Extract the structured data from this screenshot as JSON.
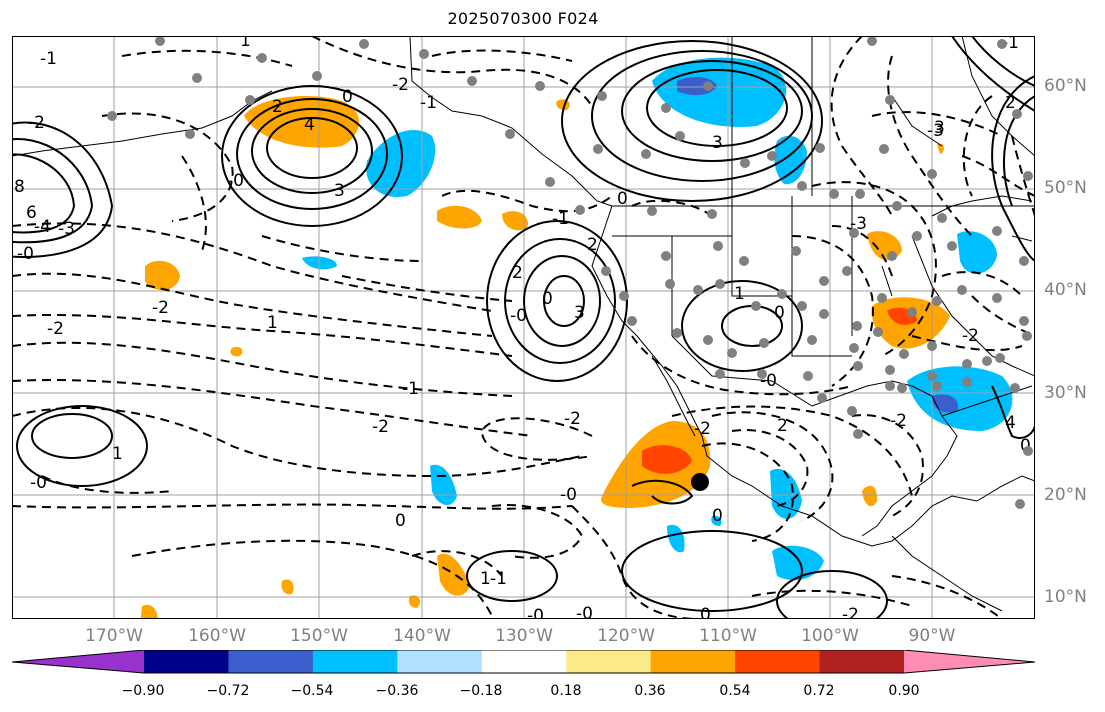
{
  "title": "2025070300 F024",
  "lat_labels": [
    "60°N",
    "50°N",
    "40°N",
    "30°N",
    "20°N",
    "10°N"
  ],
  "lon_labels": [
    "170°W",
    "160°W",
    "150°W",
    "140°W",
    "130°W",
    "120°W",
    "110°W",
    "100°W",
    "90°W"
  ],
  "colorbar": {
    "ticks": [
      "−0.90",
      "−0.72",
      "−0.54",
      "−0.36",
      "−0.18",
      "0.18",
      "0.36",
      "0.54",
      "0.72",
      "0.90"
    ],
    "colors": [
      "#9932cc",
      "#00008b",
      "#3a5fcd",
      "#00bfff",
      "#b0e0ff",
      "#ffffff",
      "#fbe98a",
      "#ffa500",
      "#ff4500",
      "#b22222",
      "#ff8cb4"
    ]
  },
  "map": {
    "extent_lon": [
      -180,
      -80
    ],
    "extent_lat": [
      8,
      65
    ],
    "contour_labels": [
      "-1",
      "-2",
      "4",
      "0",
      "1",
      "2",
      "3",
      "-0",
      "3",
      "0",
      "-2",
      "-1",
      "-3",
      "2",
      "-1",
      "1",
      "6",
      "-4",
      "-3",
      "8",
      "-0",
      "-2",
      "1",
      "-2",
      "2",
      "3",
      "-0",
      "0",
      "-0",
      "-1",
      "-2",
      "-2",
      "1",
      "0",
      "-2",
      "2",
      "0",
      "-0",
      "1",
      "-0",
      "-1",
      "2",
      "0",
      "-0",
      "-2",
      "0",
      "-3",
      "-2",
      "4",
      "0",
      "3",
      "-0",
      "-1",
      "-2"
    ],
    "surface_low_marker": "black-dot",
    "station_marker_color": "#808080"
  }
}
